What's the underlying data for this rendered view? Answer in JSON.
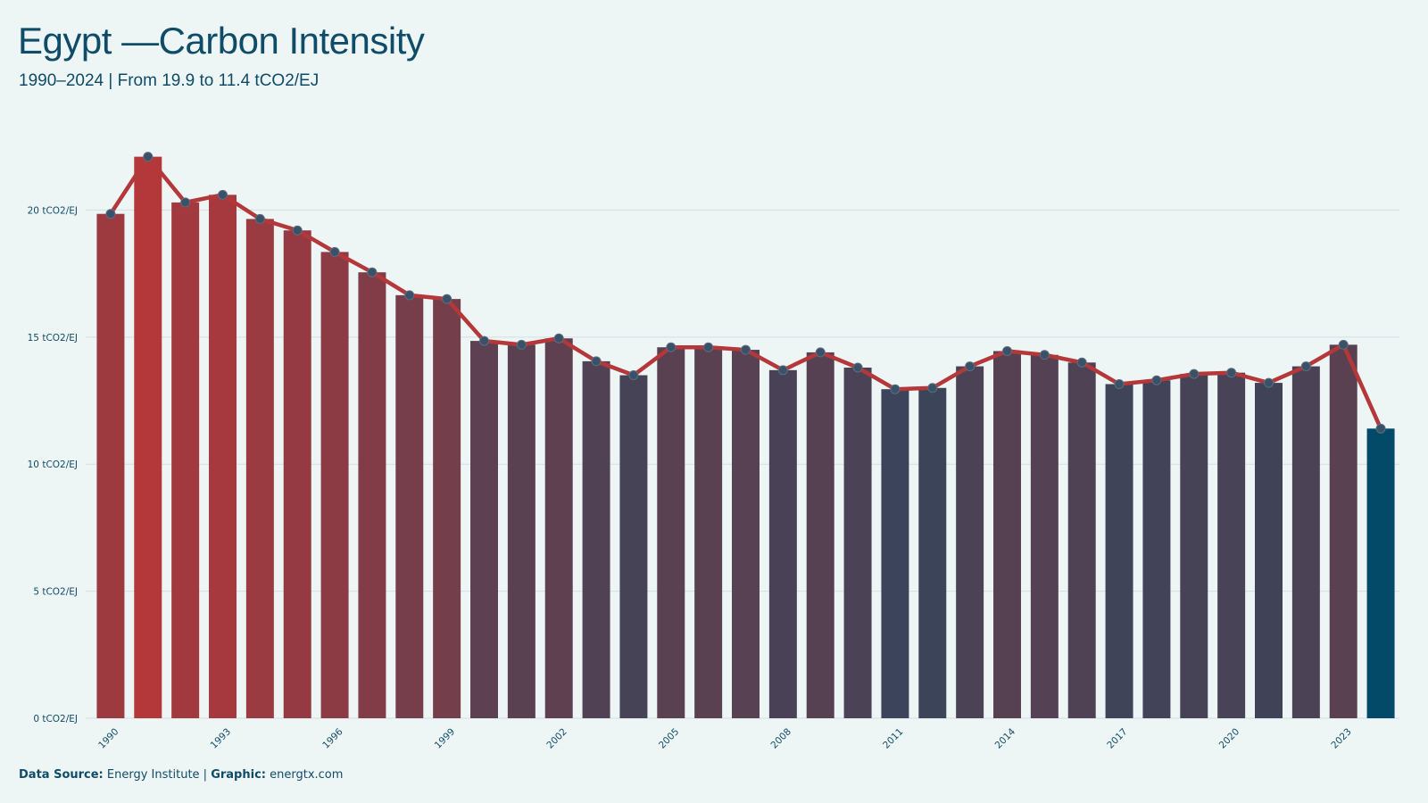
{
  "title": "Egypt —Carbon Intensity",
  "subtitle": "1990–2024 | From 19.9 to 11.4 tCO2/EJ",
  "footer": {
    "source_label": "Data Source:",
    "source_value": "Energy Institute |",
    "graphic_label": "Graphic:",
    "graphic_value": "energtx.com"
  },
  "colors": {
    "high": "#b4373a",
    "low": "#034a68",
    "line": "#b4373a",
    "marker": "#3b5168",
    "grid": "#d3dfe2",
    "background": "#eef5f5",
    "text": "#0f4c68"
  },
  "chart_data": {
    "type": "bar",
    "title": "Egypt —Carbon Intensity",
    "subtitle": "1990–2024 | From 19.9 to 11.4 tCO2/EJ",
    "x": [
      1990,
      1991,
      1992,
      1993,
      1994,
      1995,
      1996,
      1997,
      1998,
      1999,
      2000,
      2001,
      2002,
      2003,
      2004,
      2005,
      2006,
      2007,
      2008,
      2009,
      2010,
      2011,
      2012,
      2013,
      2014,
      2015,
      2016,
      2017,
      2018,
      2019,
      2020,
      2021,
      2022,
      2023,
      2024
    ],
    "x_tick_labels": [
      "1990",
      "1993",
      "1996",
      "1999",
      "2002",
      "2005",
      "2008",
      "2011",
      "2014",
      "2017",
      "2020",
      "2023"
    ],
    "series": [
      {
        "values": [
          19.85,
          22.1,
          20.3,
          20.6,
          19.65,
          19.2,
          18.35,
          17.55,
          16.65,
          16.5,
          14.85,
          14.7,
          14.95,
          14.05,
          13.5,
          14.6,
          14.6,
          14.5,
          13.7,
          14.4,
          13.8,
          12.95,
          13.0,
          13.85,
          14.45,
          14.3,
          14.0,
          13.15,
          13.3,
          13.55,
          13.6,
          13.2,
          13.85,
          14.7,
          11.4
        ]
      }
    ],
    "overlay": "line with circular markers on same values",
    "ylim": [
      0,
      23
    ],
    "y_ticks": [
      0,
      5,
      10,
      15,
      20
    ],
    "y_tick_labels": [
      "0 tCO2/EJ",
      "5 tCO2/EJ",
      "10 tCO2/EJ",
      "15 tCO2/EJ",
      "20 tCO2/EJ"
    ],
    "grid": true,
    "legend": "none"
  }
}
